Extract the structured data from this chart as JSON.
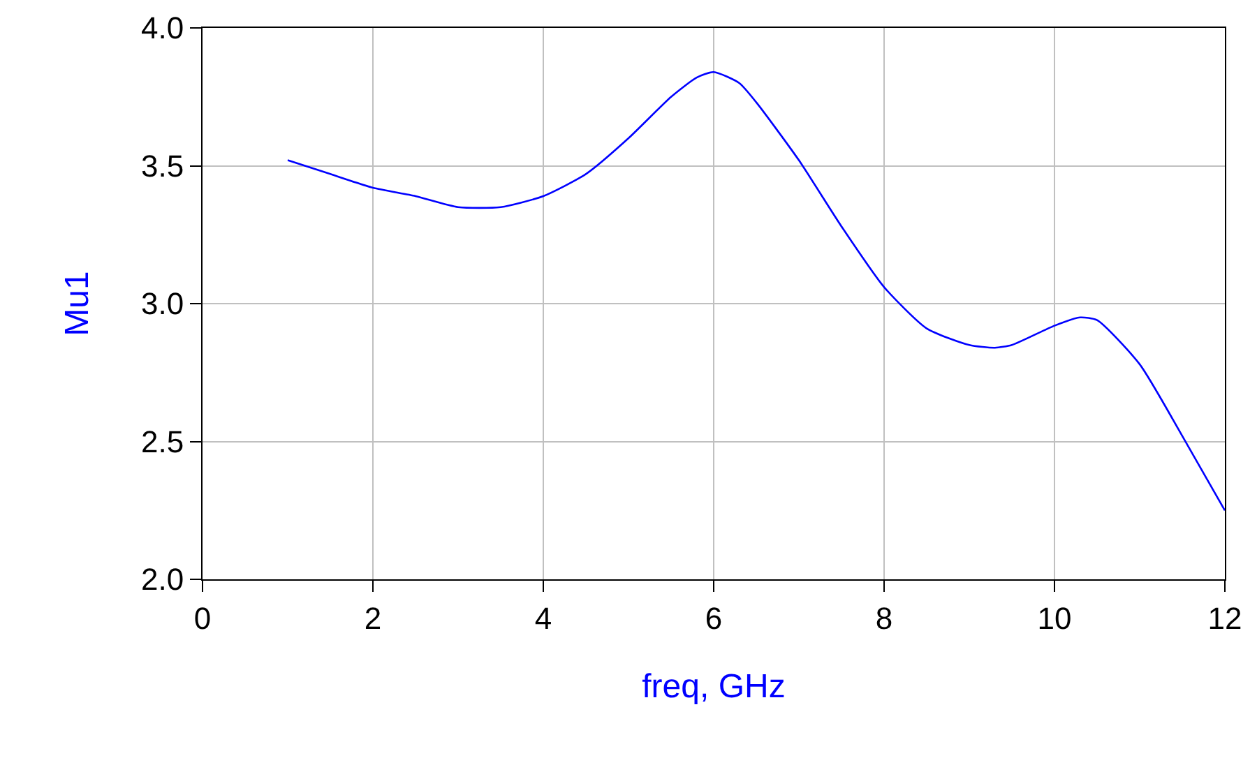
{
  "chart_data": {
    "type": "line",
    "xlabel": "freq, GHz",
    "ylabel": "Mu1",
    "x": [
      1,
      1.5,
      2,
      2.5,
      3,
      3.5,
      4,
      4.5,
      5,
      5.5,
      5.8,
      6,
      6.3,
      6.5,
      7,
      7.5,
      8,
      8.5,
      9,
      9.3,
      9.5,
      10,
      10.3,
      10.5,
      11,
      11.5,
      12
    ],
    "series": [
      {
        "color": "#0000ff",
        "values": [
          3.52,
          3.47,
          3.42,
          3.39,
          3.35,
          3.35,
          3.39,
          3.47,
          3.6,
          3.75,
          3.82,
          3.84,
          3.8,
          3.73,
          3.52,
          3.28,
          3.06,
          2.91,
          2.85,
          2.84,
          2.85,
          2.92,
          2.95,
          2.94,
          2.78,
          2.52,
          2.25
        ]
      }
    ],
    "xlim": [
      0,
      12
    ],
    "xticks": [
      0,
      2,
      4,
      6,
      8,
      10,
      12
    ],
    "ylim": [
      2,
      4
    ],
    "yticks": [
      {
        "value": 2,
        "label": "2.0"
      },
      {
        "value": 2.5,
        "label": "2.5"
      },
      {
        "value": 3,
        "label": "3.0"
      },
      {
        "value": 3.5,
        "label": "3.5"
      },
      {
        "value": 4,
        "label": "4.0"
      }
    ],
    "grid": true,
    "marker": "none",
    "line_style": "solid"
  }
}
